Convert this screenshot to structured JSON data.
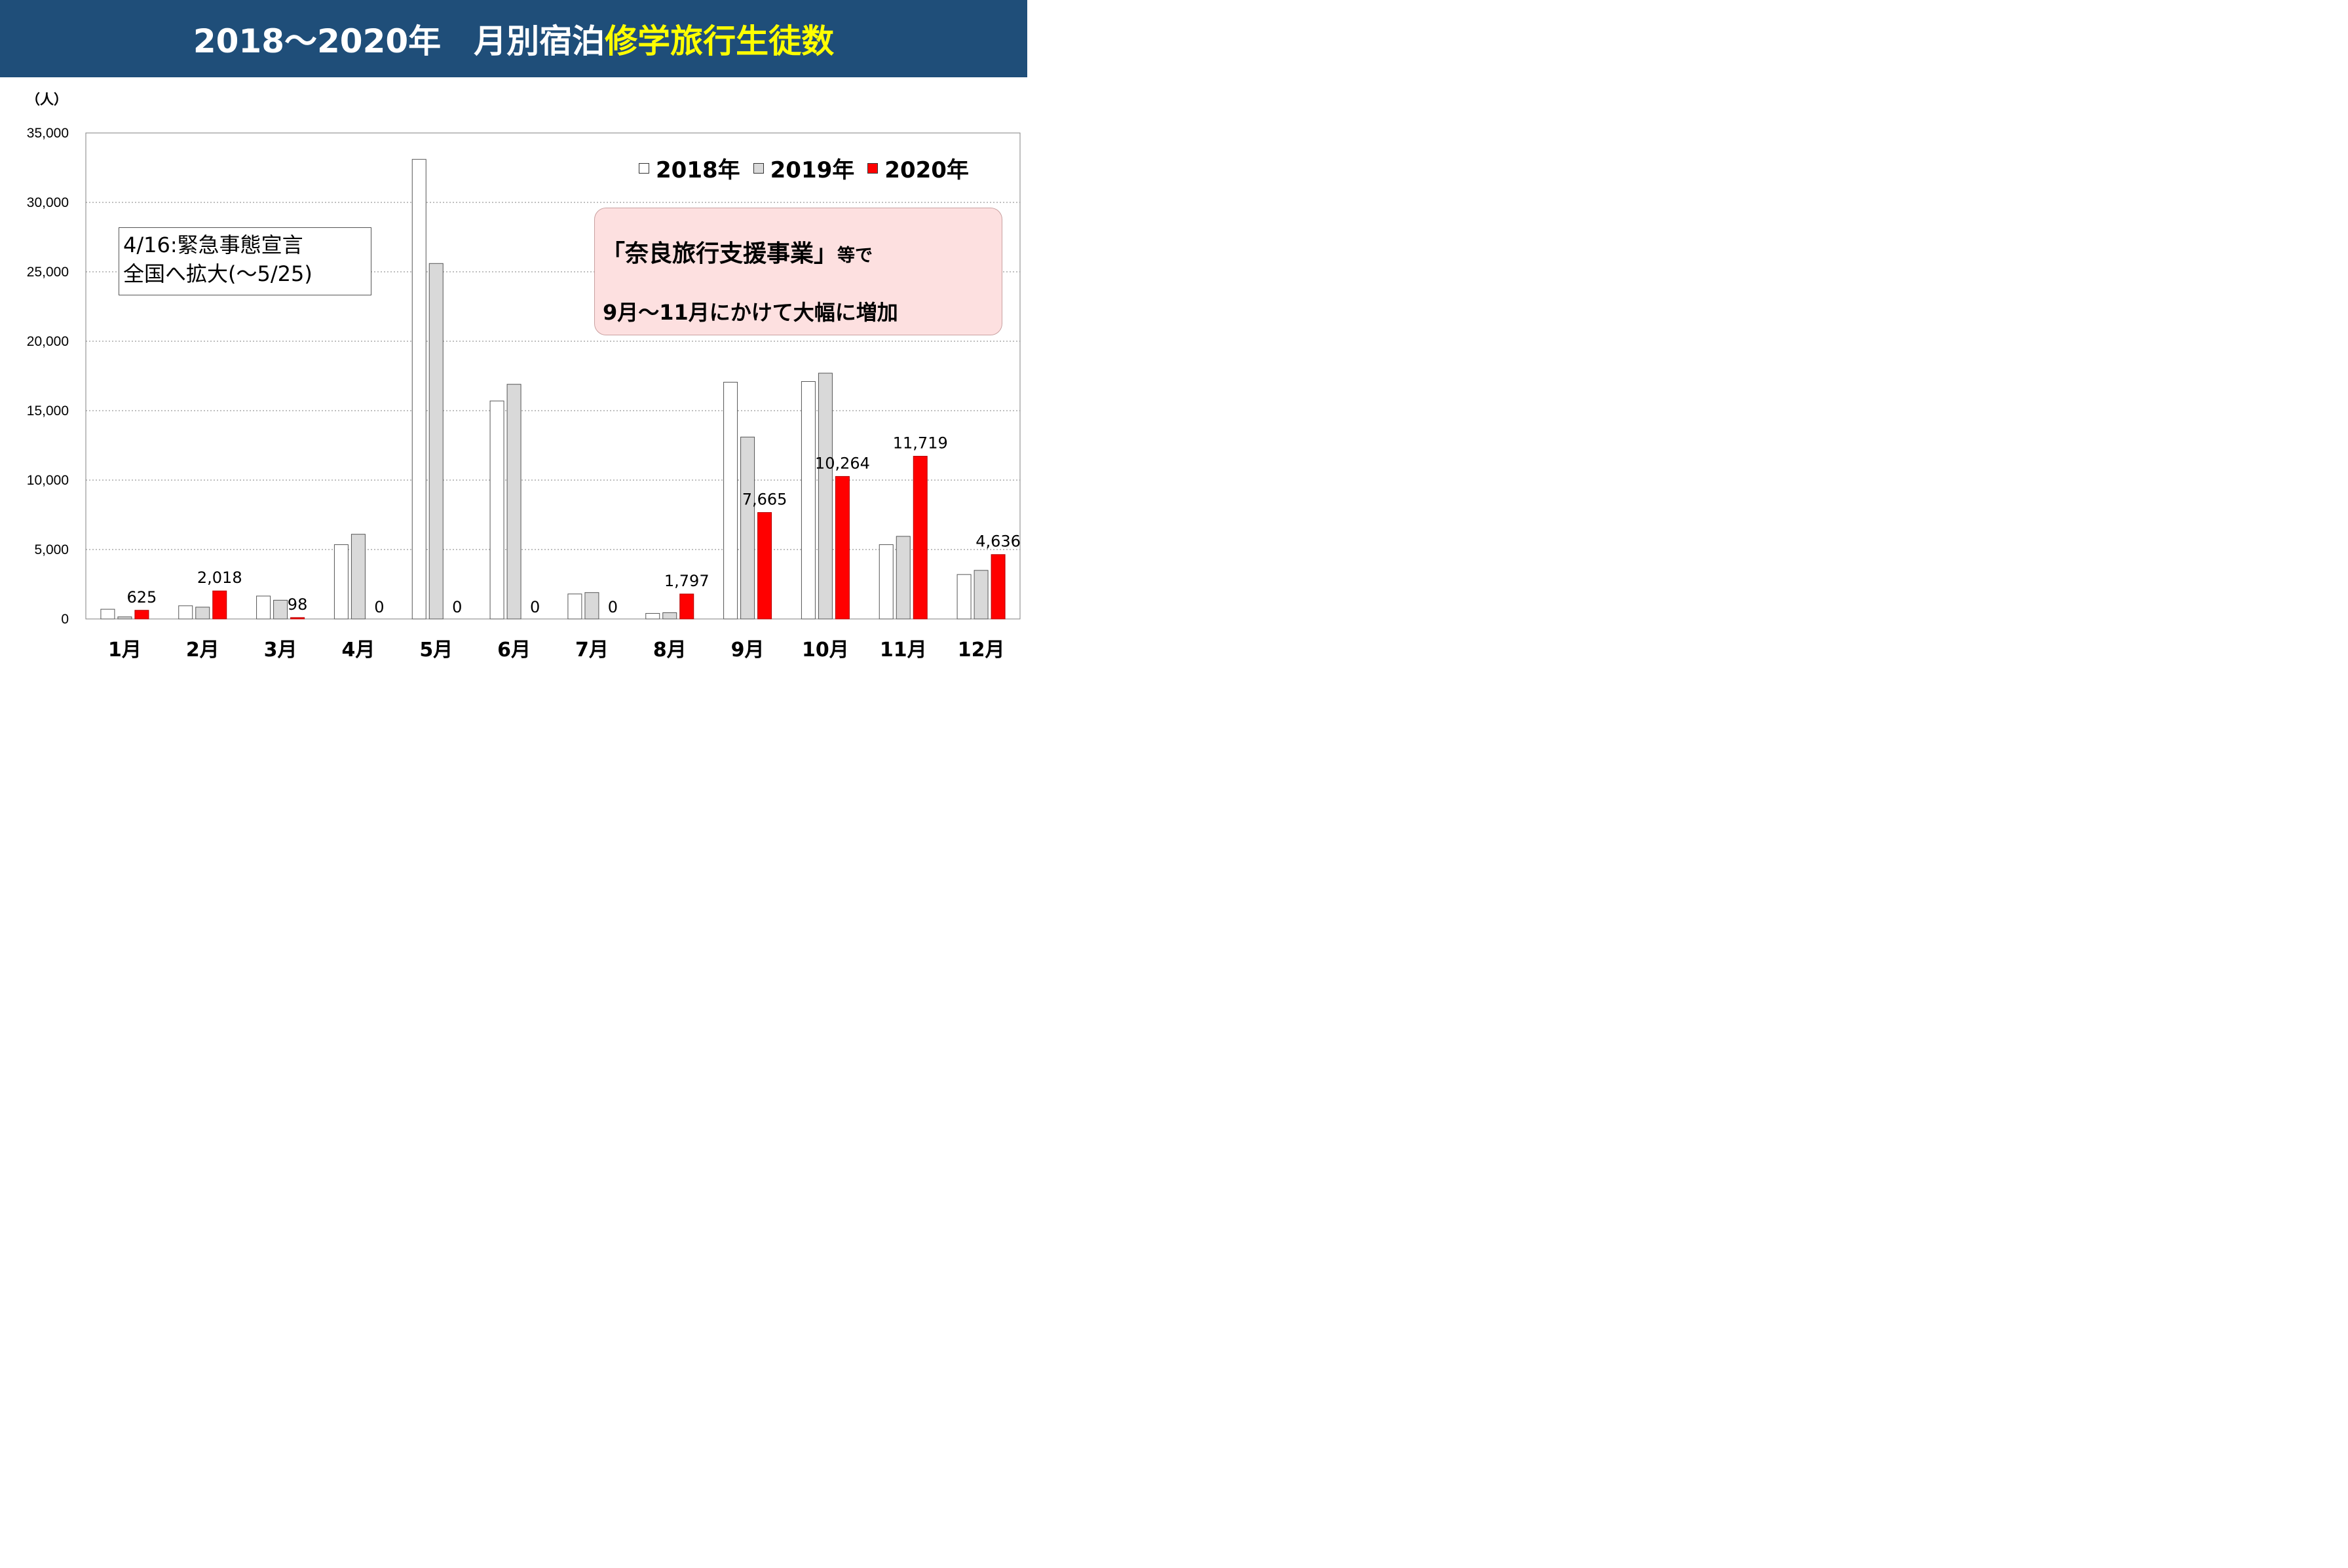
{
  "header": {
    "title_years": "2018～2020年",
    "title_main": "月別宿泊",
    "title_highlight": "修学旅行生徒数",
    "bg_color": "#1f4e79",
    "highlight_color": "#ffff00"
  },
  "legend": {
    "items": [
      {
        "label": "2018年",
        "color": "#ffffff"
      },
      {
        "label": "2019年",
        "color": "#d9d9d9"
      },
      {
        "label": "2020年",
        "color": "#ff0000"
      }
    ]
  },
  "note": {
    "line1": "4/16:緊急事態宣言",
    "line2": "全国へ拡大(～5/25)"
  },
  "callout": {
    "line1_main": "「奈良旅行支援事業」",
    "line1_suffix": "等で",
    "line2": "9月～11月にかけて大幅に増加",
    "bg_color": "#fde0e0"
  },
  "chart_data": {
    "type": "bar",
    "title": "",
    "xlabel": "",
    "ylabel": "（人）",
    "ylim": [
      0,
      35000
    ],
    "yticks": [
      0,
      5000,
      10000,
      15000,
      20000,
      25000,
      30000,
      35000
    ],
    "ytick_labels": [
      "0",
      "5,000",
      "10,000",
      "15,000",
      "20,000",
      "25,000",
      "30,000",
      "35,000"
    ],
    "grid": true,
    "legend_position": "top-right",
    "categories": [
      "1月",
      "2月",
      "3月",
      "4月",
      "5月",
      "6月",
      "7月",
      "8月",
      "9月",
      "10月",
      "11月",
      "12月"
    ],
    "series": [
      {
        "name": "2018年",
        "color": "#ffffff",
        "values": [
          700,
          950,
          1650,
          5350,
          33100,
          15700,
          1800,
          400,
          17050,
          17100,
          5350,
          3200
        ]
      },
      {
        "name": "2019年",
        "color": "#d9d9d9",
        "values": [
          150,
          850,
          1350,
          6100,
          25600,
          16900,
          1900,
          450,
          13100,
          17700,
          5950,
          3500
        ]
      },
      {
        "name": "2020年",
        "color": "#ff0000",
        "values": [
          625,
          2018,
          98,
          0,
          0,
          0,
          0,
          1797,
          7665,
          10264,
          11719,
          4636
        ]
      }
    ],
    "data_labels": [
      "625",
      "2,018",
      "98",
      "0",
      "0",
      "0",
      "0",
      "1,797",
      "7,665",
      "10,264",
      "11,719",
      "4,636"
    ]
  }
}
